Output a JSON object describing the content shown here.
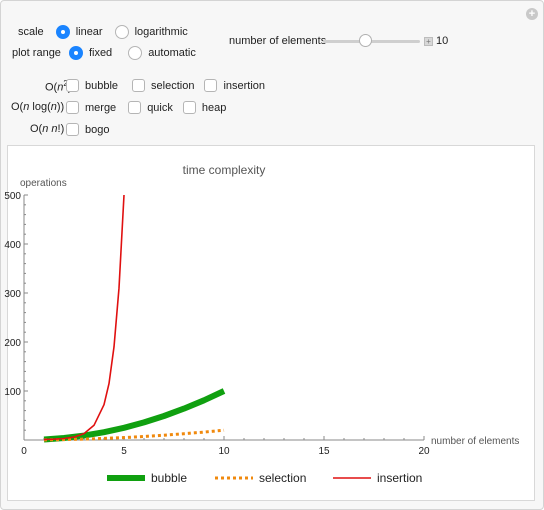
{
  "controls": {
    "scale": {
      "label": "scale",
      "options": [
        {
          "label": "linear",
          "selected": true
        },
        {
          "label": "logarithmic",
          "selected": false
        }
      ]
    },
    "plot_range": {
      "label": "plot range",
      "options": [
        {
          "label": "fixed",
          "selected": true
        },
        {
          "label": "automatic",
          "selected": false
        }
      ]
    },
    "elements": {
      "label": "number of elements",
      "value": "10",
      "min": 1,
      "max": 20
    },
    "complexity_rows": [
      {
        "label_html": "O(n<sup>2</sup>)",
        "items": [
          "bubble",
          "selection",
          "insertion"
        ]
      },
      {
        "label_html": "O(<i>n</i> log(<i>n</i>))",
        "items": [
          "merge",
          "quick",
          "heap"
        ]
      },
      {
        "label_html": "O(<i>n n</i>!)",
        "items": [
          "bogo"
        ]
      }
    ]
  },
  "chart_data": {
    "type": "line",
    "title": "time complexity",
    "xlabel": "number of elements",
    "ylabel": "operations",
    "xlim": [
      0,
      20
    ],
    "ylim": [
      0,
      500
    ],
    "xticks": [
      "0",
      "5",
      "10",
      "15",
      "20"
    ],
    "yticks": [
      "100",
      "200",
      "300",
      "400",
      "500"
    ],
    "legend_position": "bottom",
    "series": [
      {
        "name": "bubble",
        "color": "#10a010",
        "style": "solid-thick",
        "x": [
          1,
          2,
          3,
          4,
          5,
          6,
          7,
          8,
          9,
          10
        ],
        "y": [
          1,
          4,
          9,
          16,
          25,
          36,
          49,
          64,
          81,
          100
        ]
      },
      {
        "name": "selection",
        "color": "#f0890d",
        "style": "dotted",
        "x": [
          1,
          2,
          3,
          4,
          5,
          6,
          7,
          8,
          9,
          10
        ],
        "y": [
          0.2,
          0.8,
          1.8,
          3.2,
          5,
          7.2,
          9.8,
          12.8,
          16.2,
          20
        ]
      },
      {
        "name": "insertion",
        "color": "#e01010",
        "style": "solid",
        "x": [
          1,
          1.5,
          2,
          2.5,
          3,
          3.5,
          4,
          4.25,
          4.5,
          4.75,
          5
        ],
        "y": [
          1,
          1.6,
          3,
          6,
          13,
          30,
          72,
          115,
          190,
          310,
          500
        ]
      }
    ]
  }
}
